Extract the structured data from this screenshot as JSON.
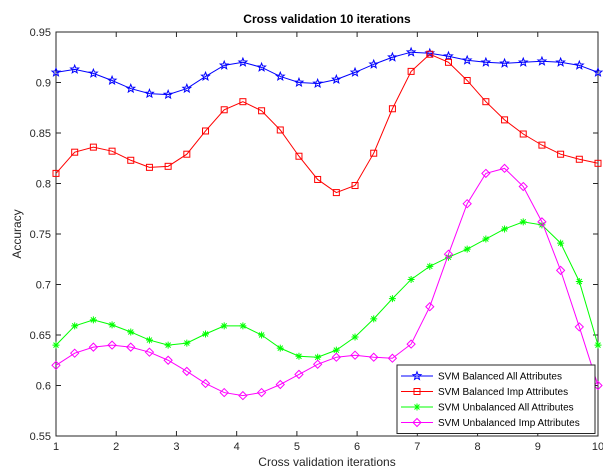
{
  "chart_data": {
    "type": "line",
    "title": "Cross validation 10 iterations",
    "xlabel": "Cross validation iterations",
    "ylabel": "Accuracy",
    "xlim": [
      1,
      10
    ],
    "ylim": [
      0.55,
      0.95
    ],
    "xticks": [
      1,
      2,
      3,
      4,
      5,
      6,
      7,
      8,
      9,
      10
    ],
    "yticks": [
      0.55,
      0.6,
      0.65,
      0.7,
      0.75,
      0.8,
      0.85,
      0.9,
      0.95
    ],
    "ytick_labels": [
      "0.55",
      "0.6",
      "0.65",
      "0.7",
      "0.75",
      "0.8",
      "0.85",
      "0.9",
      "0.95"
    ],
    "grid": false,
    "legend_position": "bottom-right",
    "x": [
      1,
      1.3103,
      1.6207,
      1.931,
      2.2414,
      2.5517,
      2.8621,
      3.1724,
      3.4828,
      3.7931,
      4.1034,
      4.4138,
      4.7241,
      5.0345,
      5.3448,
      5.6552,
      5.9655,
      6.2759,
      6.5862,
      6.8966,
      7.2069,
      7.5172,
      7.8276,
      8.1379,
      8.4483,
      8.7586,
      9.069,
      9.3793,
      9.6897,
      10
    ],
    "series": [
      {
        "name": "SVM Balanced All Attributes",
        "color": "#0000ff",
        "marker": "star",
        "values": [
          0.91,
          0.913,
          0.909,
          0.902,
          0.894,
          0.889,
          0.888,
          0.894,
          0.906,
          0.917,
          0.92,
          0.915,
          0.906,
          0.9,
          0.899,
          0.903,
          0.91,
          0.918,
          0.925,
          0.93,
          0.929,
          0.926,
          0.922,
          0.92,
          0.919,
          0.92,
          0.921,
          0.92,
          0.917,
          0.91
        ]
      },
      {
        "name": "SVM Balanced Imp Attributes",
        "color": "#ff0000",
        "marker": "square",
        "values": [
          0.81,
          0.831,
          0.836,
          0.832,
          0.823,
          0.816,
          0.817,
          0.829,
          0.852,
          0.873,
          0.881,
          0.872,
          0.853,
          0.827,
          0.804,
          0.791,
          0.798,
          0.83,
          0.874,
          0.911,
          0.928,
          0.92,
          0.902,
          0.881,
          0.863,
          0.849,
          0.838,
          0.829,
          0.824,
          0.82
        ]
      },
      {
        "name": "SVM Unbalanced All Attributes",
        "color": "#00ff00",
        "marker": "asterisk",
        "values": [
          0.64,
          0.659,
          0.665,
          0.66,
          0.653,
          0.645,
          0.64,
          0.642,
          0.651,
          0.659,
          0.659,
          0.65,
          0.637,
          0.629,
          0.628,
          0.635,
          0.648,
          0.666,
          0.686,
          0.705,
          0.718,
          0.727,
          0.735,
          0.745,
          0.755,
          0.762,
          0.759,
          0.741,
          0.703,
          0.64
        ]
      },
      {
        "name": "SVM Unbalanced Imp Attributes",
        "color": "#ff00ff",
        "marker": "diamond",
        "values": [
          0.62,
          0.632,
          0.638,
          0.64,
          0.638,
          0.633,
          0.625,
          0.614,
          0.602,
          0.593,
          0.59,
          0.593,
          0.601,
          0.611,
          0.621,
          0.628,
          0.63,
          0.628,
          0.627,
          0.641,
          0.678,
          0.73,
          0.78,
          0.81,
          0.815,
          0.797,
          0.762,
          0.714,
          0.658,
          0.6
        ]
      }
    ]
  }
}
